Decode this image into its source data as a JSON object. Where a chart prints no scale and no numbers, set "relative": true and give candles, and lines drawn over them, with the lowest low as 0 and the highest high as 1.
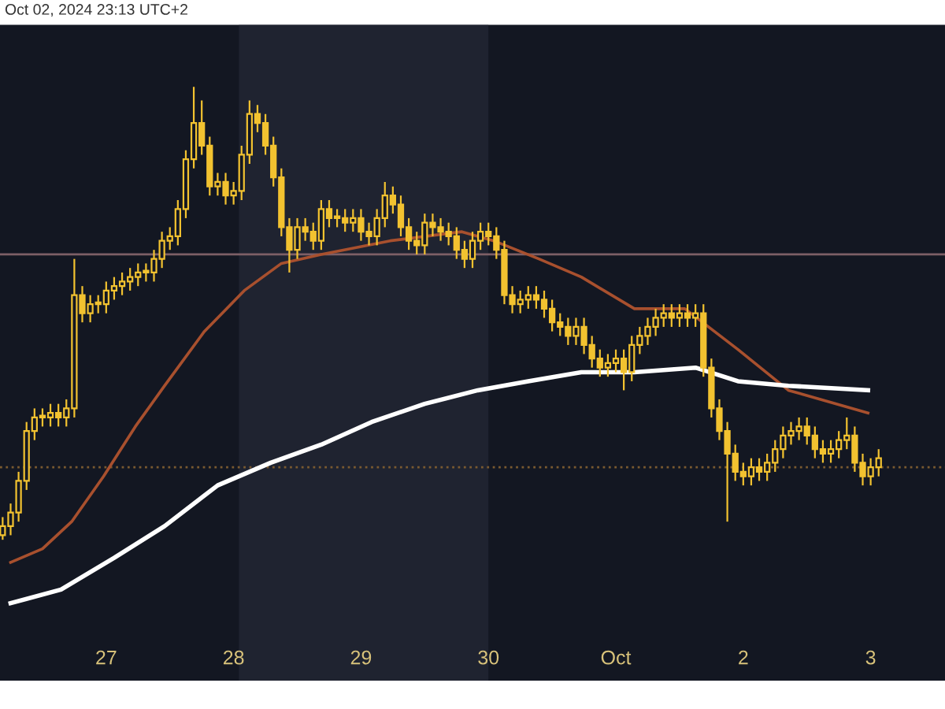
{
  "chart_data": {
    "type": "candlestick",
    "relative": true,
    "annotations": [
      "Oct 02, 2024 23:13 UTC+2"
    ],
    "x": [
      "2024-09-26T04:30",
      "2024-09-26T06:00",
      "2024-09-26T07:30",
      "2024-09-26T09:00",
      "2024-09-26T10:30",
      "2024-09-26T12:00",
      "2024-09-26T13:30",
      "2024-09-26T15:00",
      "2024-09-26T16:30",
      "2024-09-26T18:00",
      "2024-09-26T19:30",
      "2024-09-26T21:00",
      "2024-09-26T22:30",
      "2024-09-27T00:00",
      "2024-09-27T01:30",
      "2024-09-27T03:00",
      "2024-09-27T04:30",
      "2024-09-27T06:00",
      "2024-09-27T07:30",
      "2024-09-27T09:00",
      "2024-09-27T10:30",
      "2024-09-27T12:00",
      "2024-09-27T13:30",
      "2024-09-27T15:00",
      "2024-09-27T16:30",
      "2024-09-27T18:00",
      "2024-09-27T19:30",
      "2024-09-27T21:00",
      "2024-09-27T22:30",
      "2024-09-28T00:00",
      "2024-09-28T01:30",
      "2024-09-28T03:00",
      "2024-09-28T04:30",
      "2024-09-28T06:00",
      "2024-09-28T07:30",
      "2024-09-28T09:00",
      "2024-09-28T10:30",
      "2024-09-28T12:00",
      "2024-09-28T13:30",
      "2024-09-28T15:00",
      "2024-09-28T16:30",
      "2024-09-28T18:00",
      "2024-09-28T19:30",
      "2024-09-28T21:00",
      "2024-09-28T22:30",
      "2024-09-29T00:00",
      "2024-09-29T01:30",
      "2024-09-29T03:00",
      "2024-09-29T04:30",
      "2024-09-29T06:00",
      "2024-09-29T07:30",
      "2024-09-29T09:00",
      "2024-09-29T10:30",
      "2024-09-29T12:00",
      "2024-09-29T13:30",
      "2024-09-29T15:00",
      "2024-09-29T16:30",
      "2024-09-29T18:00",
      "2024-09-29T19:30",
      "2024-09-29T21:00",
      "2024-09-29T22:30",
      "2024-09-30T00:00",
      "2024-09-30T01:30",
      "2024-09-30T03:00",
      "2024-09-30T04:30",
      "2024-09-30T06:00",
      "2024-09-30T07:30",
      "2024-09-30T09:00",
      "2024-09-30T10:30",
      "2024-09-30T12:00",
      "2024-09-30T13:30",
      "2024-09-30T15:00",
      "2024-09-30T16:30",
      "2024-09-30T18:00",
      "2024-09-30T19:30",
      "2024-09-30T21:00",
      "2024-09-30T22:30",
      "2024-10-01T00:00",
      "2024-10-01T01:30",
      "2024-10-01T03:00",
      "2024-10-01T04:30",
      "2024-10-01T06:00",
      "2024-10-01T07:30",
      "2024-10-01T09:00",
      "2024-10-01T10:30",
      "2024-10-01T12:00",
      "2024-10-01T13:30",
      "2024-10-01T15:00",
      "2024-10-01T16:30",
      "2024-10-01T18:00",
      "2024-10-01T19:30",
      "2024-10-01T21:00",
      "2024-10-01T22:30",
      "2024-10-02T00:00",
      "2024-10-02T01:30",
      "2024-10-02T03:00",
      "2024-10-02T04:30",
      "2024-10-02T06:00",
      "2024-10-02T07:30",
      "2024-10-02T09:00",
      "2024-10-02T10:30",
      "2024-10-02T12:00",
      "2024-10-02T13:30",
      "2024-10-02T15:00",
      "2024-10-02T16:30",
      "2024-10-02T18:00",
      "2024-10-02T19:30",
      "2024-10-02T21:00",
      "2024-10-02T22:30",
      "2024-10-03T00:00",
      "2024-10-03T01:30"
    ],
    "ohlc": [
      [
        0.01,
        0.05,
        0.0,
        0.03
      ],
      [
        0.03,
        0.08,
        0.01,
        0.06
      ],
      [
        0.06,
        0.15,
        0.04,
        0.13
      ],
      [
        0.13,
        0.26,
        0.11,
        0.24
      ],
      [
        0.24,
        0.29,
        0.22,
        0.27
      ],
      [
        0.27,
        0.29,
        0.25,
        0.27
      ],
      [
        0.27,
        0.3,
        0.25,
        0.28
      ],
      [
        0.28,
        0.3,
        0.25,
        0.27
      ],
      [
        0.27,
        0.31,
        0.25,
        0.29
      ],
      [
        0.29,
        0.62,
        0.27,
        0.54
      ],
      [
        0.54,
        0.56,
        0.48,
        0.5
      ],
      [
        0.5,
        0.54,
        0.48,
        0.52
      ],
      [
        0.52,
        0.54,
        0.5,
        0.52
      ],
      [
        0.52,
        0.57,
        0.5,
        0.55
      ],
      [
        0.55,
        0.58,
        0.53,
        0.56
      ],
      [
        0.56,
        0.59,
        0.54,
        0.57
      ],
      [
        0.57,
        0.6,
        0.55,
        0.58
      ],
      [
        0.58,
        0.61,
        0.56,
        0.59
      ],
      [
        0.59,
        0.61,
        0.57,
        0.59
      ],
      [
        0.59,
        0.64,
        0.57,
        0.62
      ],
      [
        0.62,
        0.68,
        0.6,
        0.66
      ],
      [
        0.66,
        0.69,
        0.64,
        0.67
      ],
      [
        0.67,
        0.75,
        0.65,
        0.73
      ],
      [
        0.73,
        0.86,
        0.71,
        0.84
      ],
      [
        0.84,
        1.0,
        0.82,
        0.92
      ],
      [
        0.92,
        0.97,
        0.85,
        0.87
      ],
      [
        0.87,
        0.89,
        0.76,
        0.78
      ],
      [
        0.78,
        0.81,
        0.76,
        0.79
      ],
      [
        0.79,
        0.81,
        0.74,
        0.76
      ],
      [
        0.76,
        0.79,
        0.74,
        0.77
      ],
      [
        0.77,
        0.87,
        0.75,
        0.85
      ],
      [
        0.85,
        0.97,
        0.83,
        0.94
      ],
      [
        0.94,
        0.96,
        0.9,
        0.92
      ],
      [
        0.92,
        0.94,
        0.85,
        0.87
      ],
      [
        0.87,
        0.89,
        0.78,
        0.8
      ],
      [
        0.8,
        0.82,
        0.67,
        0.69
      ],
      [
        0.69,
        0.71,
        0.59,
        0.64
      ],
      [
        0.64,
        0.71,
        0.62,
        0.69
      ],
      [
        0.69,
        0.71,
        0.66,
        0.68
      ],
      [
        0.68,
        0.7,
        0.64,
        0.66
      ],
      [
        0.66,
        0.75,
        0.64,
        0.73
      ],
      [
        0.73,
        0.75,
        0.69,
        0.71
      ],
      [
        0.71,
        0.73,
        0.69,
        0.71
      ],
      [
        0.71,
        0.73,
        0.68,
        0.7
      ],
      [
        0.7,
        0.73,
        0.68,
        0.71
      ],
      [
        0.71,
        0.73,
        0.66,
        0.68
      ],
      [
        0.68,
        0.7,
        0.65,
        0.67
      ],
      [
        0.67,
        0.73,
        0.65,
        0.71
      ],
      [
        0.71,
        0.79,
        0.69,
        0.76
      ],
      [
        0.76,
        0.78,
        0.72,
        0.74
      ],
      [
        0.74,
        0.76,
        0.67,
        0.69
      ],
      [
        0.69,
        0.71,
        0.64,
        0.66
      ],
      [
        0.66,
        0.68,
        0.63,
        0.65
      ],
      [
        0.65,
        0.72,
        0.63,
        0.7
      ],
      [
        0.7,
        0.72,
        0.67,
        0.69
      ],
      [
        0.69,
        0.71,
        0.66,
        0.68
      ],
      [
        0.68,
        0.7,
        0.65,
        0.67
      ],
      [
        0.67,
        0.69,
        0.62,
        0.64
      ],
      [
        0.64,
        0.66,
        0.6,
        0.62
      ],
      [
        0.62,
        0.68,
        0.6,
        0.66
      ],
      [
        0.66,
        0.7,
        0.64,
        0.68
      ],
      [
        0.68,
        0.7,
        0.65,
        0.67
      ],
      [
        0.67,
        0.69,
        0.62,
        0.64
      ],
      [
        0.64,
        0.66,
        0.52,
        0.54
      ],
      [
        0.54,
        0.56,
        0.5,
        0.52
      ],
      [
        0.52,
        0.55,
        0.5,
        0.53
      ],
      [
        0.53,
        0.56,
        0.51,
        0.54
      ],
      [
        0.54,
        0.56,
        0.51,
        0.53
      ],
      [
        0.53,
        0.55,
        0.49,
        0.51
      ],
      [
        0.51,
        0.53,
        0.46,
        0.48
      ],
      [
        0.48,
        0.5,
        0.45,
        0.47
      ],
      [
        0.47,
        0.49,
        0.43,
        0.45
      ],
      [
        0.45,
        0.49,
        0.43,
        0.47
      ],
      [
        0.47,
        0.49,
        0.41,
        0.43
      ],
      [
        0.43,
        0.45,
        0.38,
        0.4
      ],
      [
        0.4,
        0.42,
        0.36,
        0.38
      ],
      [
        0.38,
        0.41,
        0.36,
        0.39
      ],
      [
        0.39,
        0.42,
        0.37,
        0.4
      ],
      [
        0.4,
        0.42,
        0.33,
        0.37
      ],
      [
        0.37,
        0.45,
        0.35,
        0.43
      ],
      [
        0.43,
        0.47,
        0.41,
        0.45
      ],
      [
        0.45,
        0.49,
        0.43,
        0.47
      ],
      [
        0.47,
        0.51,
        0.45,
        0.49
      ],
      [
        0.49,
        0.52,
        0.47,
        0.5
      ],
      [
        0.5,
        0.52,
        0.47,
        0.49
      ],
      [
        0.49,
        0.52,
        0.47,
        0.5
      ],
      [
        0.5,
        0.52,
        0.47,
        0.49
      ],
      [
        0.49,
        0.52,
        0.47,
        0.5
      ],
      [
        0.5,
        0.52,
        0.36,
        0.38
      ],
      [
        0.38,
        0.4,
        0.27,
        0.29
      ],
      [
        0.29,
        0.31,
        0.22,
        0.24
      ],
      [
        0.24,
        0.26,
        0.04,
        0.19
      ],
      [
        0.19,
        0.21,
        0.13,
        0.15
      ],
      [
        0.15,
        0.17,
        0.12,
        0.14
      ],
      [
        0.14,
        0.18,
        0.12,
        0.16
      ],
      [
        0.16,
        0.18,
        0.13,
        0.15
      ],
      [
        0.15,
        0.19,
        0.13,
        0.17
      ],
      [
        0.17,
        0.22,
        0.15,
        0.2
      ],
      [
        0.2,
        0.25,
        0.18,
        0.23
      ],
      [
        0.23,
        0.26,
        0.21,
        0.24
      ],
      [
        0.24,
        0.27,
        0.22,
        0.25
      ],
      [
        0.25,
        0.27,
        0.21,
        0.23
      ],
      [
        0.23,
        0.25,
        0.18,
        0.2
      ],
      [
        0.2,
        0.22,
        0.17,
        0.19
      ],
      [
        0.19,
        0.22,
        0.17,
        0.2
      ],
      [
        0.2,
        0.24,
        0.18,
        0.22
      ],
      [
        0.22,
        0.27,
        0.2,
        0.23
      ],
      [
        0.23,
        0.25,
        0.15,
        0.17
      ],
      [
        0.17,
        0.19,
        0.12,
        0.14
      ],
      [
        0.14,
        0.18,
        0.12,
        0.16
      ],
      [
        0.16,
        0.2,
        0.14,
        0.18
      ]
    ],
    "color": "#f2c230",
    "series": [
      {
        "type": "line",
        "color": "#a8502e",
        "x": [
          "2024-09-26T06:00",
          "2024-09-26T12:00",
          "2024-09-26T17:30",
          "2024-09-26T23:30",
          "2024-09-27T05:30",
          "2024-09-27T11:00",
          "2024-09-27T18:30",
          "2024-09-28T02:00",
          "2024-09-28T09:00",
          "2024-09-28T16:30",
          "2024-09-29T05:30",
          "2024-09-29T19:00",
          "2024-09-30T01:00",
          "2024-09-30T09:30",
          "2024-09-30T17:30",
          "2024-10-01T03:30",
          "2024-10-01T13:00",
          "2024-10-01T23:00",
          "2024-10-02T08:30",
          "2024-10-02T23:30"
        ],
        "values": [
          -0.05,
          -0.02,
          0.04,
          0.14,
          0.25,
          0.34,
          0.46,
          0.55,
          0.61,
          0.63,
          0.66,
          0.68,
          0.66,
          0.62,
          0.58,
          0.51,
          0.51,
          0.42,
          0.33,
          0.28
        ]
      },
      {
        "type": "line",
        "color": "#ffffff",
        "x": [
          "2024-09-26T06:00",
          "2024-09-26T15:30",
          "2024-09-27T01:30",
          "2024-09-27T11:00",
          "2024-09-27T21:00",
          "2024-09-28T07:00",
          "2024-09-28T16:30",
          "2024-09-29T02:00",
          "2024-09-29T12:00",
          "2024-09-29T22:00",
          "2024-09-30T07:30",
          "2024-09-30T17:30",
          "2024-10-01T03:30",
          "2024-10-01T15:00",
          "2024-10-01T23:00",
          "2024-10-02T08:30",
          "2024-10-02T23:30"
        ],
        "values": [
          -0.14,
          -0.11,
          -0.04,
          0.03,
          0.12,
          0.17,
          0.21,
          0.26,
          0.3,
          0.33,
          0.35,
          0.37,
          0.37,
          0.38,
          0.35,
          0.34,
          0.33
        ]
      }
    ],
    "ref_lines": [
      {
        "axis": "y",
        "value": 0.63,
        "color": "#7d5f66"
      },
      {
        "axis": "y",
        "value": 0.16,
        "color": "#7a5a30",
        "line_style": "dotted"
      }
    ],
    "bands": [
      {
        "axis": "x",
        "from": "2024-09-28T01:00",
        "to": "2024-09-30T00:00",
        "color": "#1f2330"
      }
    ],
    "xlim": [
      "2024-09-26T04:00",
      "2024-10-03T14:00"
    ],
    "xticks": [
      {
        "value": "2024-09-27",
        "label": "27"
      },
      {
        "value": "2024-09-28",
        "label": "28"
      },
      {
        "value": "2024-09-29",
        "label": "29"
      },
      {
        "value": "2024-09-30",
        "label": "30"
      },
      {
        "value": "2024-10-01",
        "label": "Oct"
      },
      {
        "value": "2024-10-02",
        "label": "2"
      },
      {
        "value": "2024-10-03",
        "label": "3"
      }
    ],
    "tick_labels": "x",
    "grid": false,
    "legend": false
  }
}
